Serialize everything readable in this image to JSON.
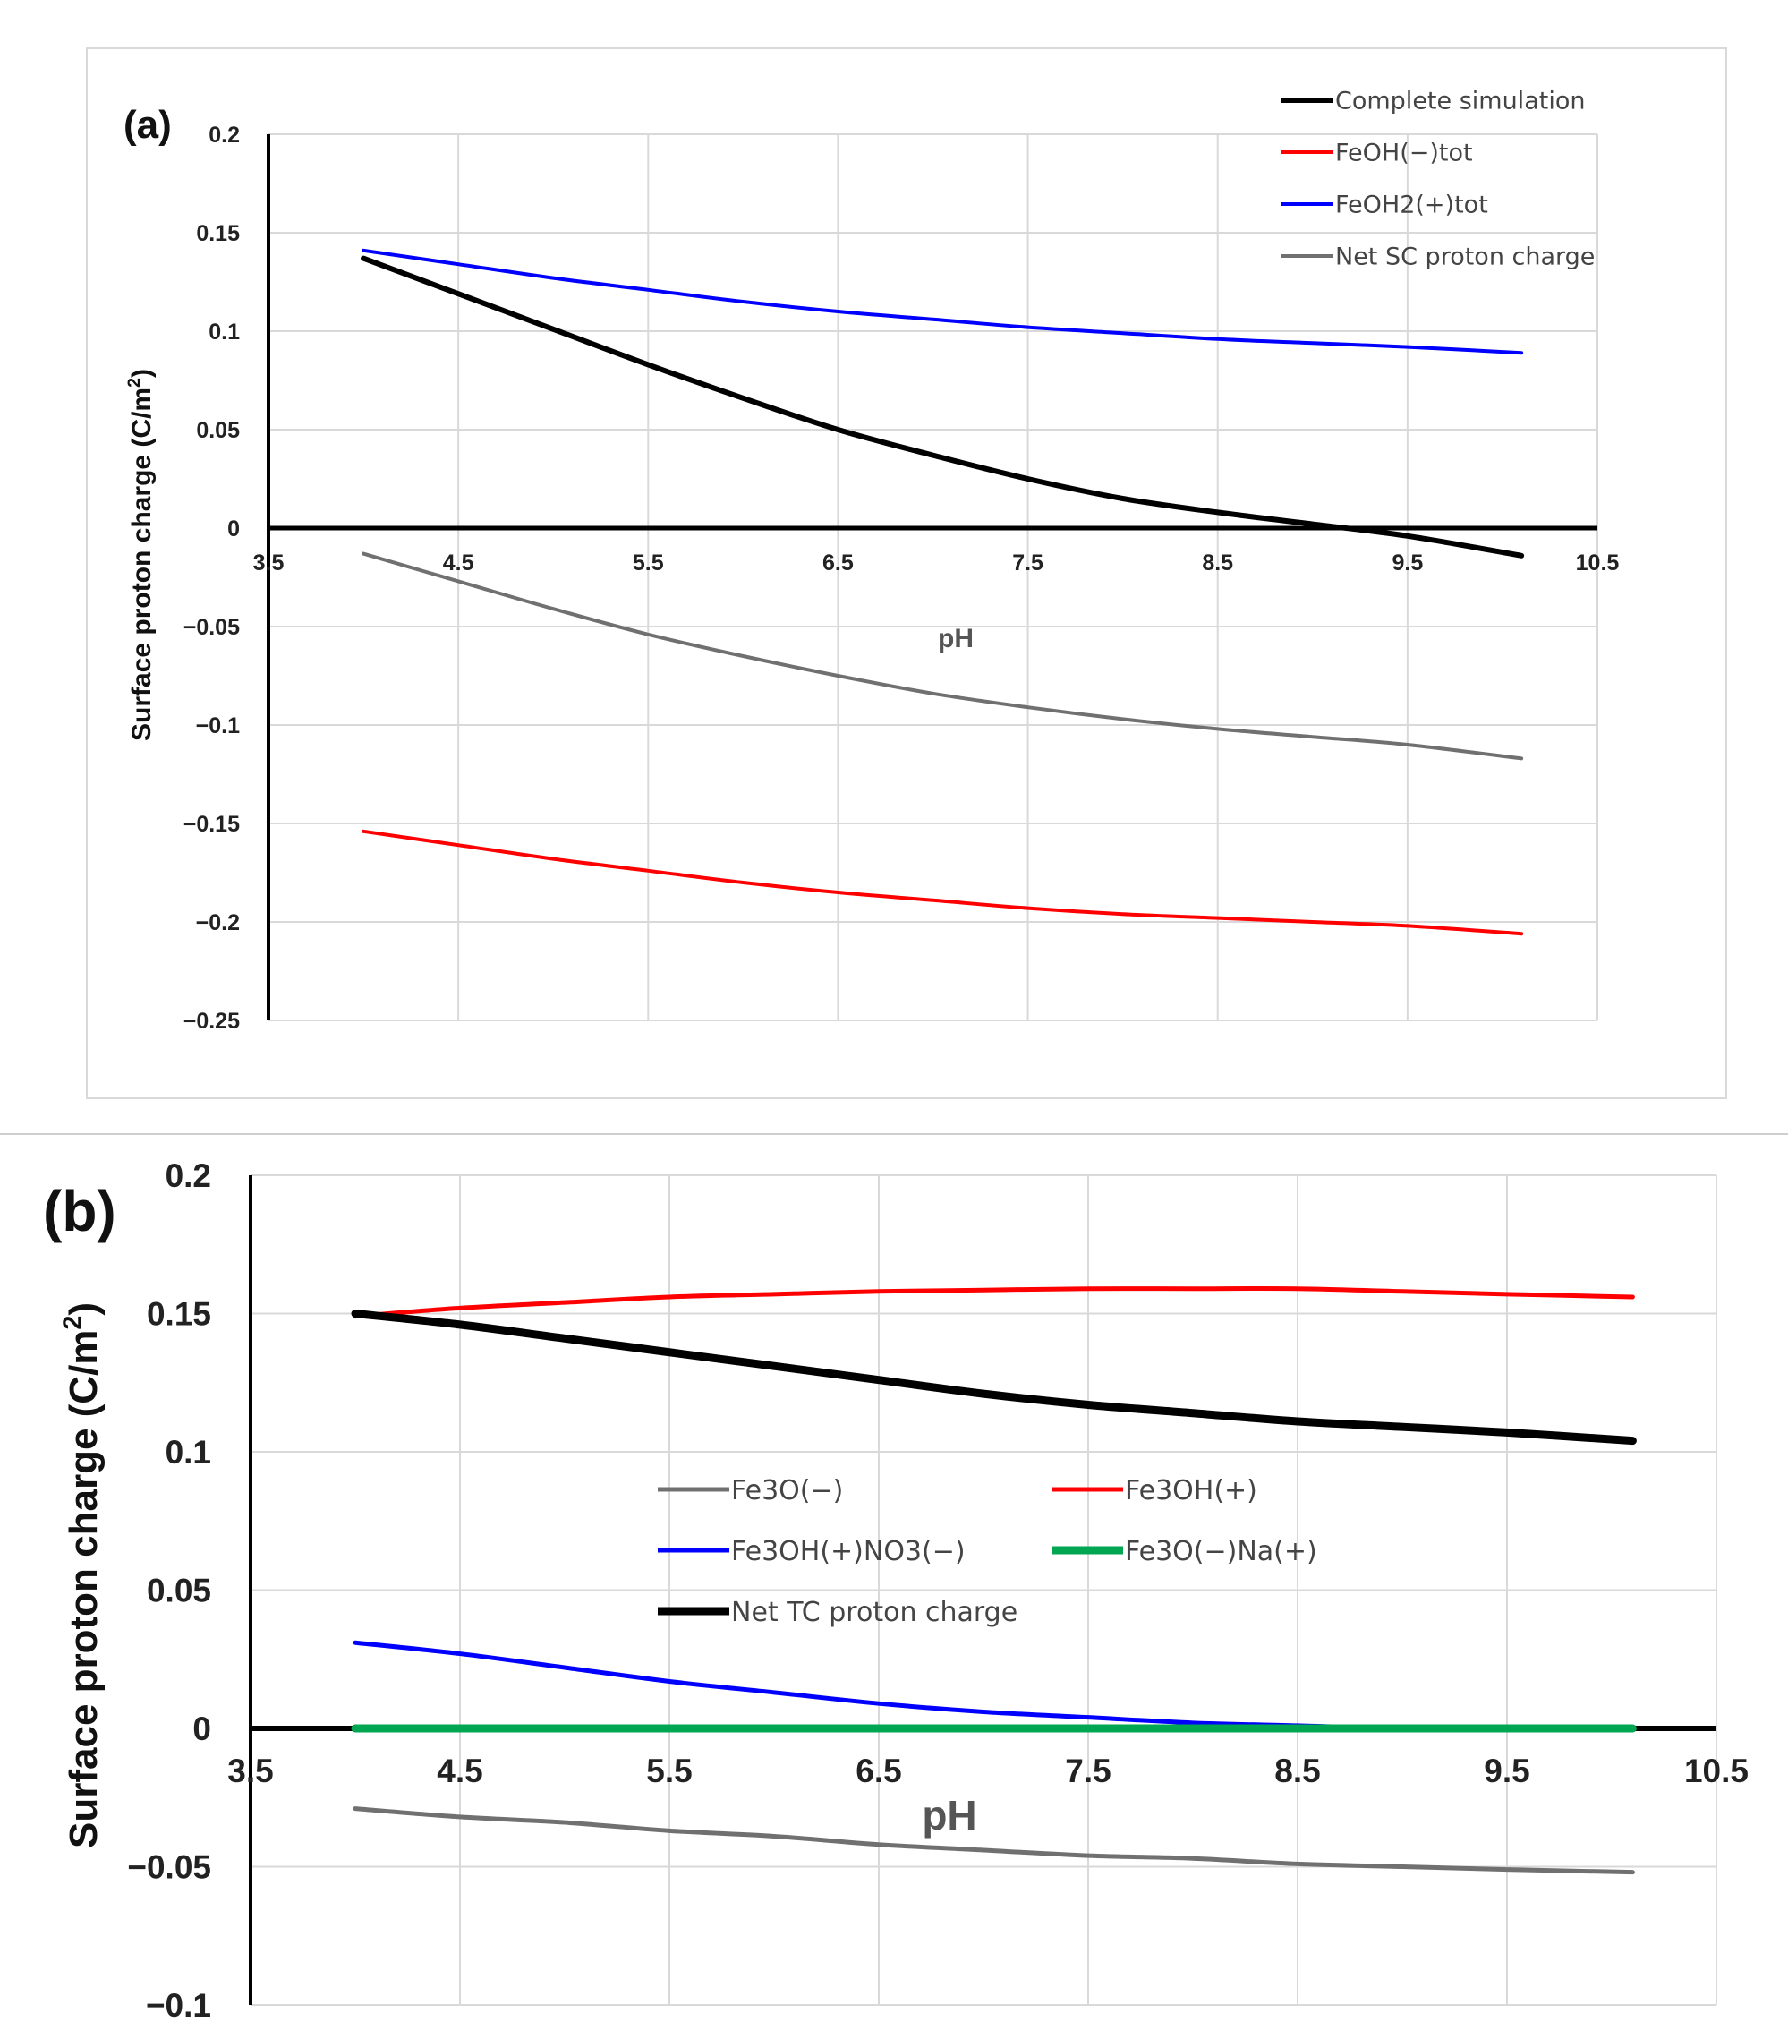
{
  "chart_data": [
    {
      "type": "line",
      "panel_label": "(a)",
      "xlabel": "pH",
      "ylabel_main": "Surface proton charge (C/m",
      "ylabel_sup": "2",
      "ylabel_end": ")",
      "xlim": [
        3.5,
        10.5
      ],
      "ylim": [
        -0.25,
        0.2
      ],
      "xticks": [
        3.5,
        4.5,
        5.5,
        6.5,
        7.5,
        8.5,
        9.5,
        10.5
      ],
      "xtick_labels": [
        "3.5",
        "4.5",
        "5.5",
        "6.5",
        "7.5",
        "8.5",
        "9.5",
        "10.5"
      ],
      "yticks": [
        0.2,
        0.15,
        0.1,
        0.05,
        0,
        -0.05,
        -0.1,
        -0.15,
        -0.2,
        -0.25
      ],
      "ytick_labels": [
        "0.2",
        "0.15",
        "0.1",
        "0.05",
        "0",
        "−0.05",
        "−0.1",
        "−0.15",
        "−0.2",
        "−0.25"
      ],
      "grid": true,
      "legend_position": "top-right",
      "x": [
        4.0,
        4.5,
        5.0,
        5.5,
        6.0,
        6.5,
        7.0,
        7.5,
        8.0,
        8.5,
        9.0,
        9.5,
        10.1
      ],
      "series": [
        {
          "name": "Complete simulation",
          "color": "#000000",
          "width": "thick",
          "values": [
            0.137,
            0.119,
            0.101,
            0.083,
            0.066,
            0.05,
            0.037,
            0.025,
            0.015,
            0.008,
            0.002,
            -0.004,
            -0.014
          ]
        },
        {
          "name": "FeOH(−)tot",
          "color": "#ff0000",
          "width": "normal",
          "values": [
            -0.154,
            -0.161,
            -0.168,
            -0.174,
            -0.18,
            -0.185,
            -0.189,
            -0.193,
            -0.196,
            -0.198,
            -0.2,
            -0.202,
            -0.206
          ]
        },
        {
          "name": "FeOH2(+)tot",
          "color": "#0000ff",
          "width": "normal",
          "values": [
            0.141,
            0.134,
            0.127,
            0.121,
            0.115,
            0.11,
            0.106,
            0.102,
            0.099,
            0.096,
            0.094,
            0.092,
            0.089
          ]
        },
        {
          "name": "Net SC proton charge",
          "color": "#707070",
          "width": "normal",
          "values": [
            -0.013,
            -0.027,
            -0.041,
            -0.054,
            -0.065,
            -0.075,
            -0.084,
            -0.091,
            -0.097,
            -0.102,
            -0.106,
            -0.11,
            -0.117
          ]
        }
      ]
    },
    {
      "type": "line",
      "panel_label": "(b)",
      "xlabel": "pH",
      "ylabel_main": "Surface proton charge (C/m",
      "ylabel_sup": "2",
      "ylabel_end": ")",
      "xlim": [
        3.5,
        10.5
      ],
      "ylim": [
        -0.1,
        0.2
      ],
      "xticks": [
        3.5,
        4.5,
        5.5,
        6.5,
        7.5,
        8.5,
        9.5,
        10.5
      ],
      "xtick_labels": [
        "3.5",
        "4.5",
        "5.5",
        "6.5",
        "7.5",
        "8.5",
        "9.5",
        "10.5"
      ],
      "yticks": [
        0.2,
        0.15,
        0.1,
        0.05,
        0,
        -0.05,
        -0.1
      ],
      "ytick_labels": [
        "0.2",
        "0.15",
        "0.1",
        "0.05",
        "0",
        "−0.05",
        "−0.1"
      ],
      "grid": true,
      "legend_position": "center",
      "x": [
        4.0,
        4.5,
        5.0,
        5.5,
        6.0,
        6.5,
        7.0,
        7.5,
        8.0,
        8.5,
        9.0,
        9.5,
        10.1
      ],
      "series": [
        {
          "name": "Fe3O(−)",
          "color": "#707070",
          "width": "normal",
          "values": [
            -0.029,
            -0.032,
            -0.034,
            -0.037,
            -0.039,
            -0.042,
            -0.044,
            -0.046,
            -0.047,
            -0.049,
            -0.05,
            -0.051,
            -0.052
          ]
        },
        {
          "name": "Fe3OH(+)",
          "color": "#ff0000",
          "width": "normal",
          "values": [
            0.149,
            0.152,
            0.154,
            0.156,
            0.157,
            0.158,
            0.1585,
            0.159,
            0.159,
            0.159,
            0.158,
            0.157,
            0.156
          ]
        },
        {
          "name": "Fe3OH(+)NO3(−)",
          "color": "#0000ff",
          "width": "normal",
          "values": [
            0.031,
            0.027,
            0.022,
            0.017,
            0.013,
            0.009,
            0.006,
            0.004,
            0.002,
            0.001,
            0.0,
            0.0,
            0.0
          ]
        },
        {
          "name": "Fe3O(−)Na(+)",
          "color": "#00a651",
          "width": "thick",
          "values": [
            0,
            0,
            0,
            0,
            0,
            0,
            0,
            0,
            0,
            0,
            0,
            0,
            0
          ]
        },
        {
          "name": "Net TC proton charge",
          "color": "#000000",
          "width": "thick",
          "values": [
            0.15,
            0.146,
            0.141,
            0.136,
            0.131,
            0.126,
            0.121,
            0.117,
            0.114,
            0.111,
            0.109,
            0.107,
            0.104
          ]
        }
      ]
    }
  ]
}
